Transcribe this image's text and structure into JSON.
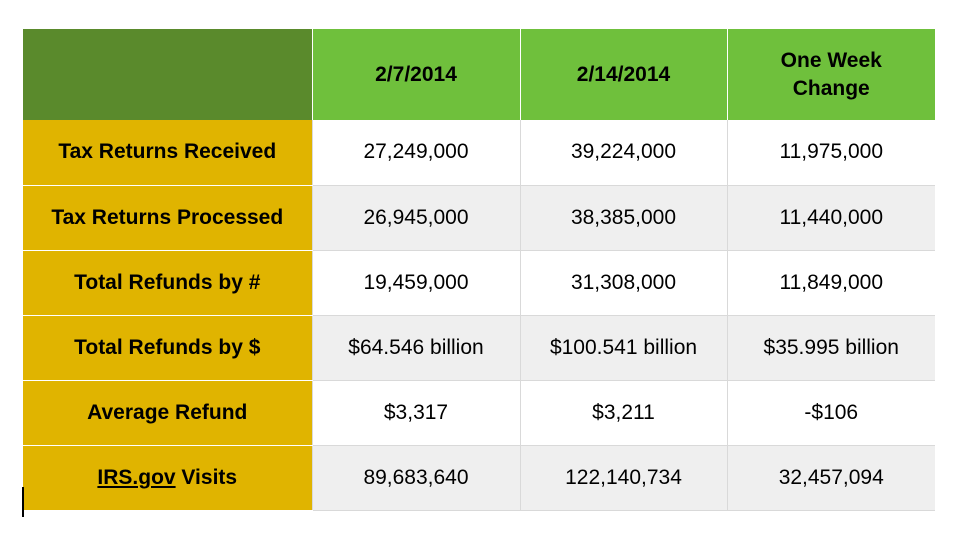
{
  "table": {
    "columns": [
      "",
      "2/7/2014",
      "2/14/2014",
      "One Week Change"
    ],
    "rows": [
      {
        "label": "Tax Returns Received",
        "values": [
          "27,249,000",
          "39,224,000",
          "11,975,000"
        ]
      },
      {
        "label": "Tax Returns Processed",
        "values": [
          "26,945,000",
          "38,385,000",
          "11,440,000"
        ]
      },
      {
        "label": "Total Refunds by #",
        "values": [
          "19,459,000",
          "31,308,000",
          "11,849,000"
        ]
      },
      {
        "label": "Total Refunds by $",
        "values": [
          "$64.546 billion",
          "$100.541 billion",
          "$35.995 billion"
        ]
      },
      {
        "label": "Average Refund",
        "values": [
          "$3,317",
          "$3,211",
          "-$106"
        ]
      },
      {
        "label_link": "IRS.gov",
        "label_rest": " Visits",
        "values": [
          "89,683,640",
          "122,140,734",
          "32,457,094"
        ]
      }
    ]
  },
  "colors": {
    "header_dark_green": "#5a8a2c",
    "header_green": "#6fc03c",
    "row_header_gold": "#e0b400",
    "row_alt_gray": "#efefef"
  }
}
